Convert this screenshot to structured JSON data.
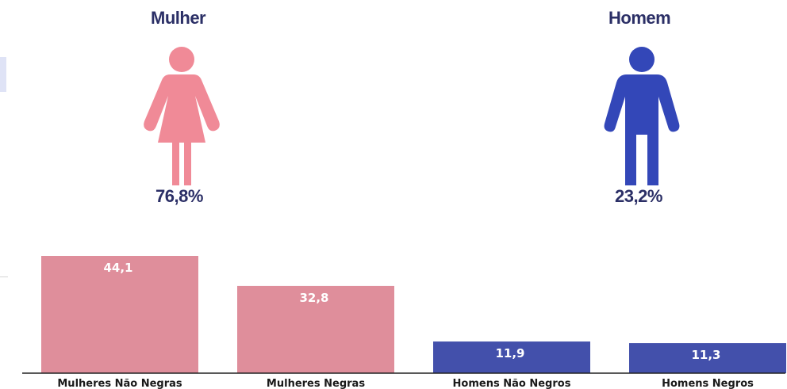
{
  "gender": {
    "female": {
      "title": "Mulher",
      "percent": "76,8%",
      "color": "#f08a97",
      "icon": "woman-icon"
    },
    "male": {
      "title": "Homem",
      "percent": "23,2%",
      "color": "#3347b8",
      "icon": "man-icon"
    }
  },
  "chart_data": {
    "type": "bar",
    "categories": [
      "Mulheres Não Negras",
      "Mulheres Negras",
      "Homens Não Negros",
      "Homens Negros"
    ],
    "values": [
      44.1,
      32.8,
      11.9,
      11.3
    ],
    "value_labels": [
      "44,1",
      "32,8",
      "11,9",
      "11,3"
    ],
    "colors": [
      "#df8e9b",
      "#df8e9b",
      "#4350ab",
      "#4350ab"
    ],
    "title": "",
    "xlabel": "",
    "ylabel": "",
    "ylim": [
      0,
      50
    ],
    "grid": false
  }
}
